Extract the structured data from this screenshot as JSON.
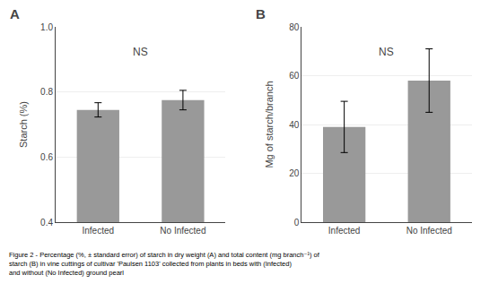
{
  "chart_data": [
    {
      "type": "bar",
      "title": "A",
      "categories": [
        "Infected",
        "No Infected"
      ],
      "values": [
        0.745,
        0.775
      ],
      "errors": [
        0.022,
        0.03
      ],
      "color": "#999999",
      "ylabel": "Starch (%)",
      "ylim": [
        0.4,
        1.0
      ],
      "yticks": [
        0.4,
        0.6,
        0.8,
        {
          "value": 1.0,
          "label": "1.0"
        }
      ],
      "grid": true,
      "annotations": [
        "NS"
      ]
    },
    {
      "type": "bar",
      "title": "B",
      "categories": [
        "Infected",
        "No Infected"
      ],
      "values": [
        39.0,
        58.0
      ],
      "errors": [
        10.5,
        13.0
      ],
      "color": "#999999",
      "ylabel": "Mg of starch/branch",
      "ylim": [
        0,
        80
      ],
      "yticks": [
        0,
        20,
        40,
        60,
        80
      ],
      "grid": true,
      "annotations": [
        "NS"
      ]
    }
  ],
  "caption": [
    "Figure 2 - Percentage (%, ± standard error) of starch in dry weight (A) and total content (mg branch⁻¹) of",
    "starch (B) in vine cuttings of cultivar 'Paulsen 1103' collected from plants in beds with (Infected)",
    "and without (No Infected) ground pearl"
  ]
}
